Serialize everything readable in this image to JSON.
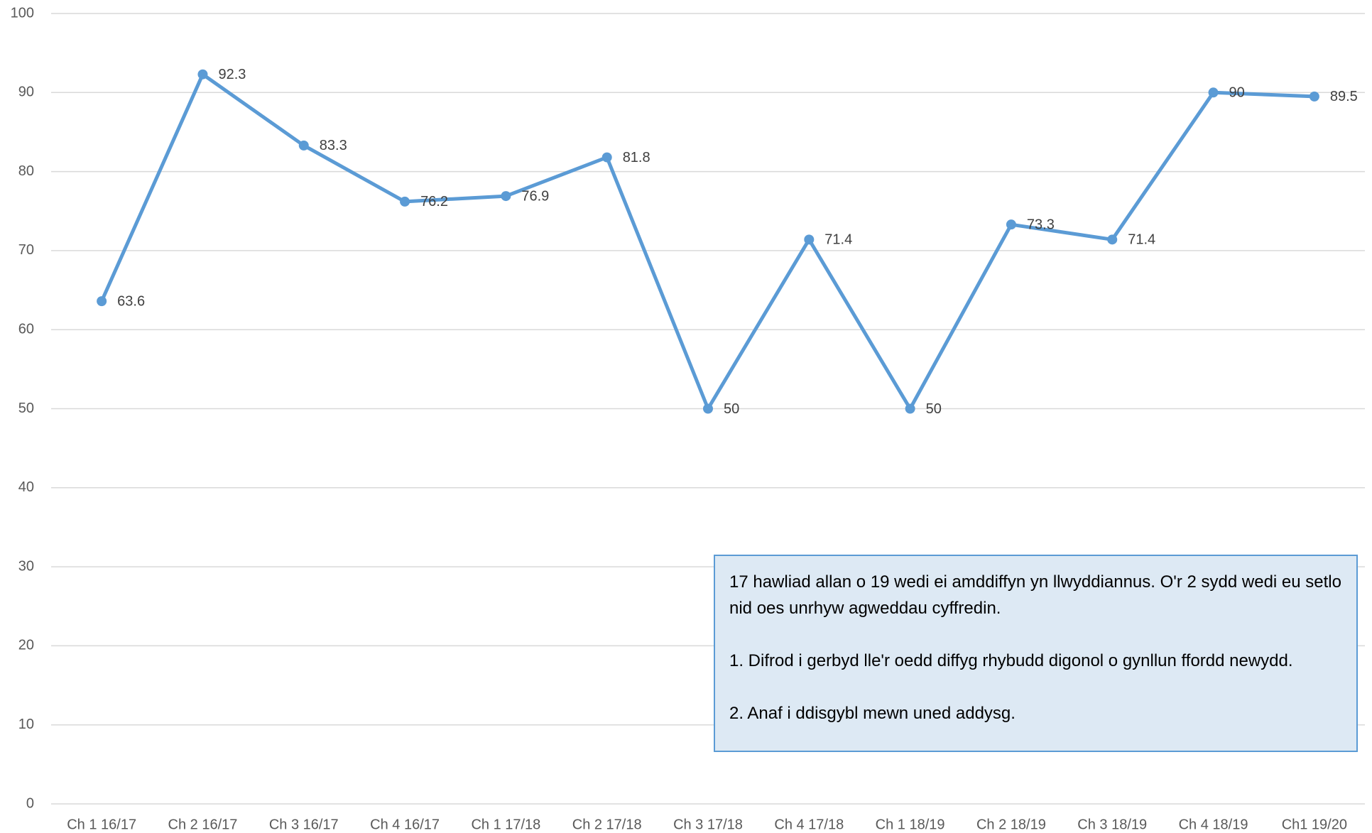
{
  "chart_data": {
    "type": "line",
    "categories": [
      "Ch 1 16/17",
      "Ch 2 16/17",
      "Ch 3 16/17",
      "Ch 4 16/17",
      "Ch 1 17/18",
      "Ch 2 17/18",
      "Ch 3 17/18",
      "Ch 4 17/18",
      "Ch 1 18/19",
      "Ch 2 18/19",
      "Ch 3 18/19",
      "Ch 4 18/19",
      "Ch1 19/20"
    ],
    "values": [
      63.6,
      92.3,
      83.3,
      76.2,
      76.9,
      81.8,
      50,
      71.4,
      50,
      73.3,
      71.4,
      90,
      89.5
    ],
    "color": "#5b9bd5",
    "ylim": [
      0,
      100
    ],
    "yticks": [
      0,
      10,
      20,
      30,
      40,
      50,
      60,
      70,
      80,
      90,
      100
    ],
    "grid": true,
    "annotation": [
      "17 hawliad allan o 19 wedi ei amddiffyn yn llwyddiannus. O'r 2 sydd wedi eu setlo nid oes unrhyw agweddau cyffredin.",
      "1. Difrod i gerbyd lle'r oedd diffyg rhybudd digonol o gynllun ffordd newydd.",
      "2. Anaf i ddisgybl mewn uned addysg."
    ]
  }
}
